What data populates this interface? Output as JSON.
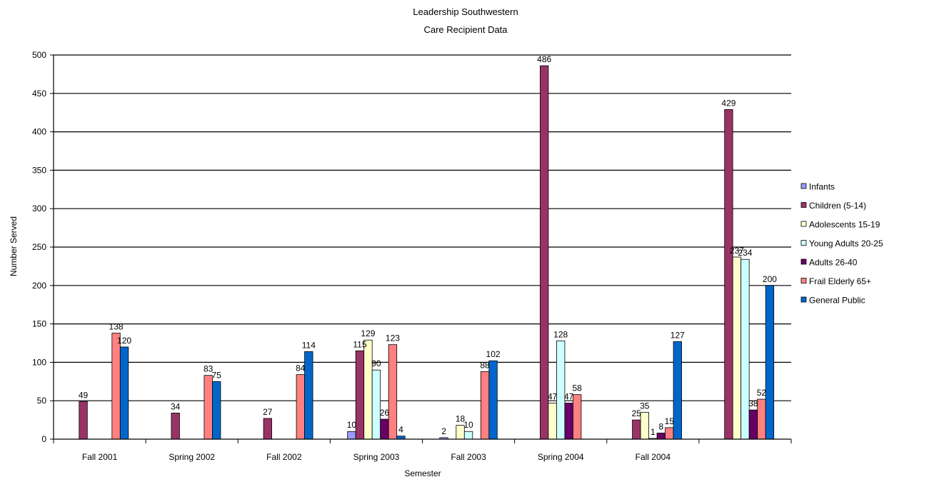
{
  "chart_data": {
    "type": "bar",
    "title": "Leadership Southwestern",
    "subtitle": "Care Recipient Data",
    "xlabel": "Semester",
    "ylabel": "Number Served",
    "ylim": [
      0,
      500
    ],
    "yticks": [
      0,
      50,
      100,
      150,
      200,
      250,
      300,
      350,
      400,
      450,
      500
    ],
    "grid": true,
    "legend_position": "right",
    "categories": [
      "Fall 2001",
      "Spring 2002",
      "Fall 2002",
      "Spring 2003",
      "Fall 2003",
      "Spring 2004",
      "Fall 2004",
      ""
    ],
    "series": [
      {
        "name": "Infants",
        "color": "#9999ff",
        "values": [
          null,
          null,
          null,
          10,
          2,
          null,
          null,
          null
        ]
      },
      {
        "name": "Children (5-14)",
        "color": "#993366",
        "values": [
          49,
          34,
          27,
          115,
          null,
          486,
          25,
          429
        ]
      },
      {
        "name": "Adolescents 15-19",
        "color": "#ffffcc",
        "values": [
          null,
          null,
          null,
          129,
          18,
          47,
          35,
          237
        ]
      },
      {
        "name": "Young Adults 20-25",
        "color": "#ccffff",
        "values": [
          null,
          null,
          null,
          90,
          10,
          128,
          1,
          234
        ]
      },
      {
        "name": "Adults 26-40",
        "color": "#660066",
        "values": [
          null,
          null,
          null,
          26,
          null,
          47,
          8,
          38
        ]
      },
      {
        "name": "Frail Elderly 65+",
        "color": "#ff8080",
        "values": [
          138,
          83,
          84,
          123,
          88,
          58,
          15,
          52
        ]
      },
      {
        "name": "General Public",
        "color": "#0066cc",
        "values": [
          120,
          75,
          114,
          4,
          102,
          null,
          127,
          200
        ]
      }
    ],
    "data_labels": [
      [
        "",
        "",
        "",
        "10",
        "2",
        "",
        "",
        ""
      ],
      [
        "49",
        "34",
        "27",
        "115",
        "",
        "486",
        "25",
        "429"
      ],
      [
        "",
        "",
        "",
        "129",
        "18",
        "47",
        "35",
        "237"
      ],
      [
        "",
        "",
        "",
        "90",
        "10",
        "128",
        "1",
        "234"
      ],
      [
        "",
        "",
        "",
        "26",
        "",
        "47",
        "8",
        "38"
      ],
      [
        "138",
        "83",
        "84",
        "123",
        "88",
        "58",
        "15",
        "52"
      ],
      [
        "120",
        "75",
        "114",
        "4",
        "102",
        "",
        "127",
        "200"
      ]
    ]
  }
}
